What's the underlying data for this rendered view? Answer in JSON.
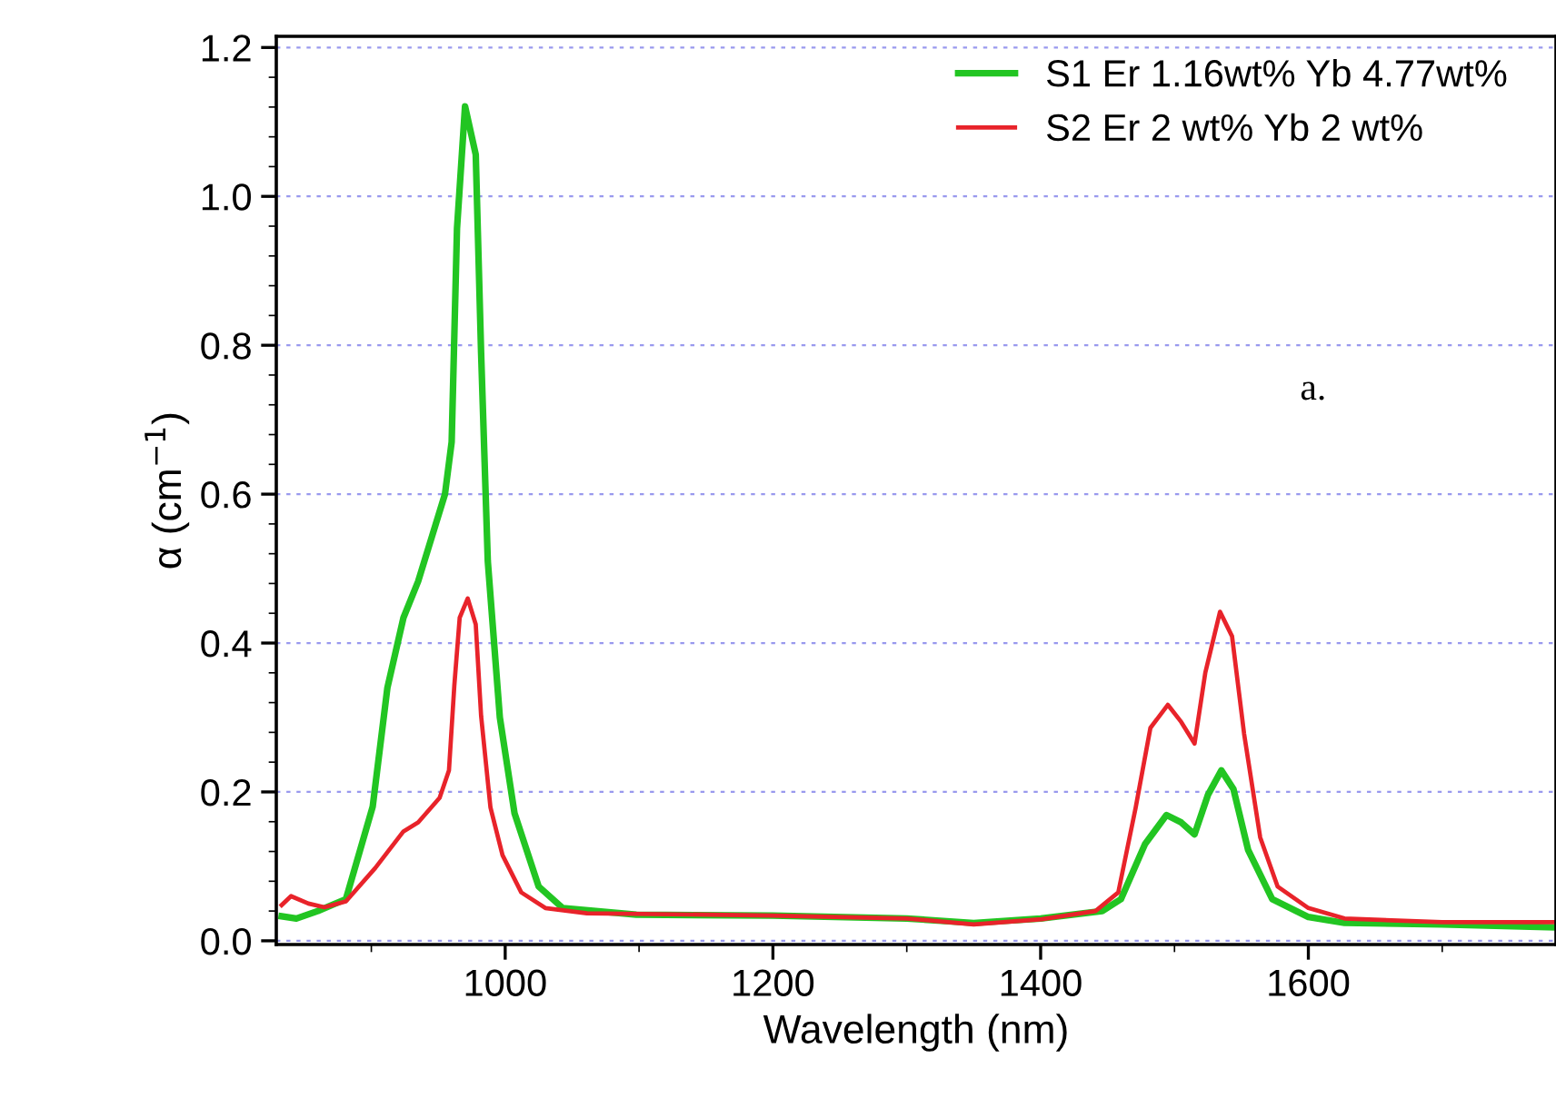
{
  "chart_data": {
    "type": "line",
    "xlabel": "Wavelength (nm)",
    "ylabel": "α (cm$^{−1}$)",
    "annotations": [
      "a."
    ],
    "xlim": [
      829,
      1785
    ],
    "xticks": [
      1000,
      1200,
      1400,
      1600
    ],
    "ylim": [
      -0.005,
      1.215
    ],
    "yticks": [
      {
        "value": 0,
        "label": "0.0"
      },
      {
        "value": 0.2,
        "label": "0.2"
      },
      {
        "value": 0.4,
        "label": "0.4"
      },
      {
        "value": 0.6,
        "label": "0.6"
      },
      {
        "value": 0.8,
        "label": "0.8"
      },
      {
        "value": 1.0,
        "label": "1.0"
      },
      {
        "value": 1.2,
        "label": "1.2"
      }
    ],
    "grid": "y",
    "legend": "top right",
    "line_style": "solid",
    "marker": "none",
    "series": [
      {
        "name": "S1 Er 1.16wt% Yb 4.77wt%",
        "color": "#22c522",
        "x": [
          833,
          844,
          860,
          881,
          901,
          912,
          924,
          935,
          955,
          960,
          964,
          970,
          978,
          982,
          987,
          996,
          1007,
          1025,
          1043,
          1098,
          1200,
          1300,
          1350,
          1400,
          1446,
          1460,
          1478,
          1494,
          1505,
          1515,
          1525,
          1535,
          1544,
          1555,
          1573,
          1600,
          1627,
          1700,
          1785
        ],
        "values": [
          0.033,
          0.03,
          0.04,
          0.056,
          0.18,
          0.34,
          0.434,
          0.483,
          0.6,
          0.67,
          0.957,
          1.121,
          1.056,
          0.79,
          0.51,
          0.3,
          0.171,
          0.073,
          0.044,
          0.035,
          0.034,
          0.03,
          0.024,
          0.03,
          0.04,
          0.056,
          0.13,
          0.169,
          0.159,
          0.143,
          0.196,
          0.229,
          0.204,
          0.122,
          0.056,
          0.032,
          0.024,
          0.022,
          0.018
        ]
      },
      {
        "name": "S2 Er 2 wt% Yb 2 wt%",
        "color": "#e8232a",
        "x": [
          833,
          840,
          853,
          865,
          881,
          903,
          924,
          935,
          951,
          958,
          962,
          966,
          972,
          978,
          982,
          989,
          998,
          1012,
          1030,
          1061,
          1200,
          1300,
          1350,
          1401,
          1441,
          1458,
          1471,
          1482,
          1495,
          1505,
          1515,
          1523,
          1534,
          1543,
          1552,
          1564,
          1577,
          1600,
          1627,
          1700,
          1785
        ],
        "values": [
          0.048,
          0.06,
          0.05,
          0.045,
          0.053,
          0.098,
          0.147,
          0.159,
          0.192,
          0.229,
          0.343,
          0.434,
          0.46,
          0.425,
          0.302,
          0.179,
          0.115,
          0.065,
          0.044,
          0.037,
          0.034,
          0.03,
          0.022,
          0.029,
          0.04,
          0.065,
          0.179,
          0.286,
          0.317,
          0.294,
          0.265,
          0.36,
          0.442,
          0.409,
          0.278,
          0.139,
          0.073,
          0.044,
          0.03,
          0.025,
          0.025
        ]
      }
    ]
  }
}
